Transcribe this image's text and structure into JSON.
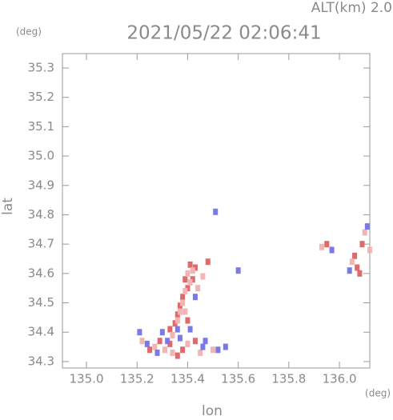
{
  "chart_data": {
    "type": "scatter",
    "title": "2021/05/22 02:06:41",
    "subtitle": "ALT(km) 2.0",
    "x_label": "lon",
    "y_label": "lat",
    "x_unit": "(deg)",
    "y_unit": "(deg)",
    "xlim": [
      134.905,
      136.12
    ],
    "ylim": [
      34.278,
      35.349
    ],
    "xticks": [
      {
        "value": 135,
        "label": "135.0"
      },
      135.2,
      135.4,
      135.6,
      135.8,
      {
        "value": 136,
        "label": "136.0"
      }
    ],
    "yticks": [
      34.3,
      34.4,
      34.5,
      34.6,
      34.7,
      34.8,
      34.9,
      {
        "value": 35,
        "label": "35.0"
      },
      35.1,
      35.2,
      35.3
    ],
    "series": [
      {
        "color": "#e06a6a",
        "x": [
          135.41,
          135.43,
          135.39,
          135.4,
          135.38,
          135.37,
          135.36,
          135.35,
          135.33,
          135.29,
          135.25,
          135.36,
          135.38,
          135.43,
          135.48,
          135.95,
          136.07,
          136.08,
          136.06,
          136.09,
          135.33,
          135.4,
          135.42
        ],
        "y": [
          34.63,
          34.62,
          34.58,
          34.55,
          34.52,
          34.49,
          34.46,
          34.43,
          34.36,
          34.37,
          34.34,
          34.32,
          34.34,
          34.37,
          34.64,
          34.7,
          34.62,
          34.6,
          34.66,
          34.7,
          34.41,
          34.44,
          34.58
        ]
      },
      {
        "color": "#f2b4b4",
        "x": [
          135.42,
          135.4,
          135.41,
          135.39,
          135.38,
          135.37,
          135.36,
          135.34,
          135.31,
          135.27,
          135.22,
          135.34,
          135.4,
          135.45,
          135.5,
          135.93,
          136.05,
          136.1,
          136.12,
          135.44,
          135.39,
          135.46
        ],
        "y": [
          34.61,
          34.6,
          34.57,
          34.54,
          34.5,
          34.47,
          34.44,
          34.39,
          34.34,
          34.35,
          34.37,
          34.33,
          34.36,
          34.33,
          34.34,
          34.69,
          34.64,
          34.74,
          34.68,
          34.55,
          34.47,
          34.59
        ]
      },
      {
        "color": "#7a7ae6",
        "x": [
          135.21,
          135.24,
          135.28,
          135.32,
          135.37,
          135.41,
          135.46,
          135.52,
          135.55,
          135.51,
          135.6,
          135.97,
          136.04,
          136.11,
          135.43,
          135.36,
          135.3,
          135.47
        ],
        "y": [
          34.4,
          34.36,
          34.33,
          34.37,
          34.38,
          34.41,
          34.35,
          34.34,
          34.35,
          34.81,
          34.61,
          34.68,
          34.61,
          34.76,
          34.52,
          34.41,
          34.4,
          34.37
        ]
      }
    ]
  }
}
